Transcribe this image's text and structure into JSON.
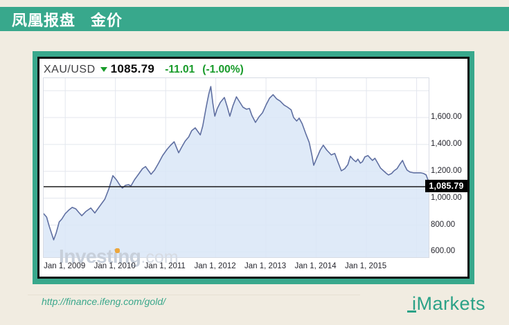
{
  "header": {
    "title": "凤凰报盘",
    "subtitle": "金价"
  },
  "quote": {
    "symbol": "XAU/USD",
    "direction_icon": "triangle-down",
    "price": "1085.79",
    "change": "-11.01",
    "change_pct": "(-1.00%)",
    "change_color": "#189b2a"
  },
  "chart_data": {
    "type": "area",
    "title": "XAU/USD gold price, weekly",
    "x_range": [
      2008.57,
      2016.24
    ],
    "y_range": [
      561,
      1893
    ],
    "grid": true,
    "legend": "none",
    "watermark": {
      "bold": "Investing",
      "light": ".com"
    },
    "x_ticks": [
      {
        "t": 2009,
        "label": "Jan 1, 2009"
      },
      {
        "t": 2010,
        "label": "Jan 1, 2010"
      },
      {
        "t": 2011,
        "label": "Jan 1, 2011"
      },
      {
        "t": 2012,
        "label": "Jan 1, 2012"
      },
      {
        "t": 2013,
        "label": "Jan 1, 2013"
      },
      {
        "t": 2014,
        "label": "Jan 1, 2014"
      },
      {
        "t": 2015,
        "label": "Jan 1, 2015"
      },
      {
        "t": 2016,
        "label": ""
      }
    ],
    "y_ticks": [
      {
        "v": 600,
        "label": "600.00"
      },
      {
        "v": 800,
        "label": "800.00"
      },
      {
        "v": 1000,
        "label": "1,000.00"
      },
      {
        "v": 1200,
        "label": "1,200.00"
      },
      {
        "v": 1400,
        "label": "1,400.00"
      },
      {
        "v": 1600,
        "label": "1,600.00"
      },
      {
        "v": 1800,
        "label": ""
      }
    ],
    "current_price": 1085.79,
    "current_price_label": "1,085.79",
    "colors": {
      "line": "#5f6fa1",
      "fill": "#d9e6f7",
      "grid": "#e3e6ee",
      "price_line": "#1b1b1b",
      "badge_bg": "#000000",
      "badge_text": "#ffffff"
    },
    "series": [
      {
        "name": "XAU/USD",
        "points": [
          [
            2008.57,
            885
          ],
          [
            2008.63,
            860
          ],
          [
            2008.68,
            793
          ],
          [
            2008.77,
            690
          ],
          [
            2008.82,
            741
          ],
          [
            2008.88,
            824
          ],
          [
            2008.93,
            844
          ],
          [
            2009.0,
            885
          ],
          [
            2009.07,
            911
          ],
          [
            2009.14,
            932
          ],
          [
            2009.21,
            921
          ],
          [
            2009.28,
            890
          ],
          [
            2009.33,
            870
          ],
          [
            2009.41,
            901
          ],
          [
            2009.51,
            927
          ],
          [
            2009.59,
            890
          ],
          [
            2009.69,
            942
          ],
          [
            2009.79,
            993
          ],
          [
            2009.87,
            1070
          ],
          [
            2009.95,
            1168
          ],
          [
            2010.02,
            1137
          ],
          [
            2010.09,
            1096
          ],
          [
            2010.14,
            1076
          ],
          [
            2010.2,
            1096
          ],
          [
            2010.26,
            1101
          ],
          [
            2010.31,
            1091
          ],
          [
            2010.38,
            1137
          ],
          [
            2010.46,
            1178
          ],
          [
            2010.54,
            1220
          ],
          [
            2010.6,
            1235
          ],
          [
            2010.66,
            1204
          ],
          [
            2010.71,
            1178
          ],
          [
            2010.78,
            1209
          ],
          [
            2010.86,
            1261
          ],
          [
            2010.94,
            1317
          ],
          [
            2011.03,
            1364
          ],
          [
            2011.1,
            1394
          ],
          [
            2011.17,
            1420
          ],
          [
            2011.22,
            1374
          ],
          [
            2011.26,
            1338
          ],
          [
            2011.32,
            1379
          ],
          [
            2011.39,
            1425
          ],
          [
            2011.46,
            1456
          ],
          [
            2011.52,
            1502
          ],
          [
            2011.59,
            1523
          ],
          [
            2011.65,
            1492
          ],
          [
            2011.69,
            1471
          ],
          [
            2011.74,
            1538
          ],
          [
            2011.81,
            1682
          ],
          [
            2011.86,
            1775
          ],
          [
            2011.9,
            1831
          ],
          [
            2011.94,
            1708
          ],
          [
            2011.98,
            1610
          ],
          [
            2012.03,
            1667
          ],
          [
            2012.09,
            1713
          ],
          [
            2012.17,
            1749
          ],
          [
            2012.23,
            1677
          ],
          [
            2012.28,
            1610
          ],
          [
            2012.34,
            1687
          ],
          [
            2012.41,
            1754
          ],
          [
            2012.48,
            1713
          ],
          [
            2012.54,
            1677
          ],
          [
            2012.61,
            1662
          ],
          [
            2012.67,
            1667
          ],
          [
            2012.72,
            1615
          ],
          [
            2012.79,
            1564
          ],
          [
            2012.86,
            1605
          ],
          [
            2012.93,
            1636
          ],
          [
            2013.0,
            1693
          ],
          [
            2013.07,
            1744
          ],
          [
            2013.14,
            1770
          ],
          [
            2013.21,
            1739
          ],
          [
            2013.28,
            1723
          ],
          [
            2013.36,
            1693
          ],
          [
            2013.43,
            1677
          ],
          [
            2013.5,
            1657
          ],
          [
            2013.55,
            1600
          ],
          [
            2013.61,
            1574
          ],
          [
            2013.66,
            1595
          ],
          [
            2013.72,
            1554
          ],
          [
            2013.79,
            1482
          ],
          [
            2013.86,
            1415
          ],
          [
            2013.91,
            1328
          ],
          [
            2013.95,
            1245
          ],
          [
            2014.01,
            1297
          ],
          [
            2014.08,
            1358
          ],
          [
            2014.14,
            1394
          ],
          [
            2014.21,
            1358
          ],
          [
            2014.3,
            1322
          ],
          [
            2014.37,
            1333
          ],
          [
            2014.43,
            1271
          ],
          [
            2014.5,
            1204
          ],
          [
            2014.57,
            1220
          ],
          [
            2014.63,
            1250
          ],
          [
            2014.68,
            1312
          ],
          [
            2014.74,
            1286
          ],
          [
            2014.79,
            1271
          ],
          [
            2014.83,
            1291
          ],
          [
            2014.88,
            1261
          ],
          [
            2014.92,
            1271
          ],
          [
            2014.97,
            1307
          ],
          [
            2015.03,
            1317
          ],
          [
            2015.08,
            1297
          ],
          [
            2015.12,
            1281
          ],
          [
            2015.17,
            1297
          ],
          [
            2015.21,
            1271
          ],
          [
            2015.28,
            1225
          ],
          [
            2015.34,
            1204
          ],
          [
            2015.4,
            1184
          ],
          [
            2015.44,
            1173
          ],
          [
            2015.5,
            1184
          ],
          [
            2015.55,
            1204
          ],
          [
            2015.61,
            1220
          ],
          [
            2015.66,
            1250
          ],
          [
            2015.72,
            1281
          ],
          [
            2015.76,
            1245
          ],
          [
            2015.81,
            1209
          ],
          [
            2015.87,
            1194
          ],
          [
            2015.94,
            1189
          ],
          [
            2016.01,
            1189
          ],
          [
            2016.08,
            1189
          ],
          [
            2016.14,
            1184
          ],
          [
            2016.19,
            1173
          ],
          [
            2016.23,
            1132
          ],
          [
            2016.24,
            1086
          ]
        ]
      }
    ]
  },
  "footer": {
    "url": "http://finance.ifeng.com/gold/",
    "logo": "iMarkets"
  }
}
